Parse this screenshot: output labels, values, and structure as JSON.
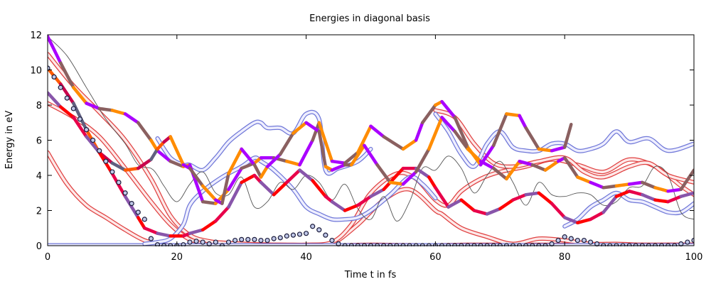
{
  "chart_data": {
    "type": "line",
    "title": "Energies in diagonal basis",
    "xlabel": "Time t in fs",
    "ylabel": "Energy in eV",
    "xlim": [
      0,
      100
    ],
    "ylim": [
      0,
      12
    ],
    "xticks": [
      0,
      20,
      40,
      60,
      80,
      100
    ],
    "yticks": [
      0,
      2,
      4,
      6,
      8,
      10,
      12
    ],
    "grid": false,
    "legend": "none",
    "colors": {
      "ribbon_red_edge": "#e04040",
      "ribbon_red_fill": "#fde8e8",
      "ribbon_blue_edge": "#7078d8",
      "ribbon_blue_fill": "#eeeeff",
      "thin_line": "#555555",
      "circle_fill": "#c0c8e8",
      "circle_edge": "#1a1a3a",
      "hot": [
        "#ff0000",
        "#ff5a00",
        "#ff8c00",
        "#e8004a",
        "#c8004c",
        "#aa00ff",
        "#8855aa",
        "#606080",
        "#8a6060"
      ]
    },
    "series": [
      {
        "style": "ribbon-red",
        "x": [
          0,
          3,
          6,
          9,
          12,
          15,
          18,
          21,
          24,
          27,
          30,
          33,
          36,
          40,
          45,
          50,
          55,
          60,
          65,
          70,
          75,
          80,
          85,
          90,
          95,
          100
        ],
        "y": [
          5.3,
          3.5,
          2.3,
          1.6,
          0.9,
          0.3,
          0.05,
          0,
          0,
          0,
          0,
          0,
          0,
          0,
          0.02,
          0.05,
          0.03,
          0.02,
          0.05,
          0.05,
          0.05,
          0.05,
          0.05,
          0.05,
          0.05,
          0.05
        ]
      },
      {
        "style": "ribbon-red",
        "x": [
          0,
          4,
          8,
          12,
          16,
          19,
          22,
          25,
          28,
          32,
          35,
          38,
          41,
          44,
          48,
          52,
          56,
          60,
          61,
          64,
          68,
          72,
          76,
          80,
          84,
          88,
          92,
          96,
          100
        ],
        "y": [
          8.1,
          7.3,
          6.2,
          4.4,
          2.5,
          1.2,
          0.35,
          0.2,
          0.1,
          0.05,
          0.05,
          0.05,
          0.05,
          0.1,
          1.2,
          2.6,
          3.2,
          2.0,
          1.8,
          1.0,
          0.5,
          0.1,
          0.4,
          0.3,
          0.1,
          0.1,
          0.05,
          0.05,
          0.05
        ]
      },
      {
        "style": "ribbon-red",
        "x": [
          0,
          4,
          8,
          12,
          16,
          19,
          22,
          25,
          28,
          32,
          36,
          40,
          44,
          47,
          50,
          54,
          57,
          60,
          62,
          64,
          67,
          70,
          74,
          78,
          82,
          86,
          90,
          94,
          98,
          100
        ],
        "y": [
          10.9,
          9.1,
          7.6,
          6.0,
          3.8,
          1.7,
          0.6,
          0.25,
          0.15,
          0.08,
          0.05,
          0.05,
          0.2,
          1.2,
          3.0,
          4.1,
          3.8,
          2.6,
          2.3,
          3.1,
          3.8,
          4.2,
          4.5,
          4.9,
          4.6,
          4.2,
          4.9,
          4.5,
          3.4,
          2.9
        ]
      },
      {
        "style": "ribbon-red",
        "x": [
          60,
          63,
          66,
          69,
          72,
          76,
          80,
          83,
          86,
          90,
          93,
          96,
          100
        ],
        "y": [
          7.7,
          7.3,
          5.8,
          4.7,
          4.5,
          4.8,
          5.0,
          4.2,
          3.9,
          4.5,
          4.7,
          4.0,
          3.6
        ]
      },
      {
        "style": "ribbon-blue",
        "x": [
          0,
          5,
          10,
          15,
          18,
          20,
          23,
          26,
          29,
          32,
          34,
          37,
          40,
          42,
          44,
          46,
          48,
          50,
          52,
          55,
          58,
          60,
          62,
          65,
          70,
          75,
          80,
          85,
          90,
          95,
          100
        ],
        "y": [
          0.02,
          0.02,
          0.02,
          0.02,
          0.02,
          0.02,
          0.02,
          0.02,
          0.02,
          0.02,
          0.02,
          0.02,
          0.02,
          0.02,
          0.02,
          0.02,
          0.02,
          0.02,
          0.02,
          0.02,
          0.02,
          0.02,
          0.02,
          0.02,
          0.02,
          0.02,
          0.02,
          0.02,
          0.02,
          0.02,
          0.02
        ]
      },
      {
        "style": "ribbon-blue",
        "x": [
          15,
          17,
          19,
          21,
          22,
          24,
          27,
          30,
          32,
          33,
          35,
          38,
          40,
          42,
          44,
          46,
          48,
          50,
          53,
          56,
          58,
          60
        ],
        "y": [
          0.1,
          0.2,
          0.4,
          1.2,
          2.3,
          3.1,
          3.9,
          4.5,
          5.0,
          4.8,
          4.3,
          3.2,
          2.2,
          1.8,
          1.5,
          1.5,
          1.6,
          2.0,
          2.9,
          3.9,
          3.5,
          2.7
        ]
      },
      {
        "style": "ribbon-blue",
        "x": [
          17,
          19,
          21,
          22,
          24,
          26,
          28,
          30,
          32,
          33,
          34,
          36,
          38,
          40,
          42,
          43,
          45,
          48,
          50
        ],
        "y": [
          6.1,
          5.0,
          4.6,
          4.6,
          4.3,
          5.0,
          5.9,
          6.5,
          7.0,
          7.0,
          6.7,
          6.7,
          6.4,
          7.5,
          7.2,
          4.3,
          4.4,
          4.8,
          5.5
        ]
      },
      {
        "style": "ribbon-blue",
        "x": [
          60,
          62,
          64,
          66,
          68,
          70,
          72,
          74,
          76,
          78,
          80,
          82,
          84,
          86,
          88,
          90,
          93,
          96,
          100
        ],
        "y": [
          7.5,
          6.5,
          5.2,
          4.5,
          5.8,
          6.5,
          5.6,
          5.4,
          5.4,
          5.8,
          5.8,
          5.4,
          5.5,
          5.8,
          6.5,
          5.9,
          6.1,
          5.4,
          5.8
        ]
      },
      {
        "style": "ribbon-blue",
        "x": [
          80,
          82,
          84,
          86,
          88,
          90,
          92,
          94,
          96,
          98,
          100
        ],
        "y": [
          1.1,
          1.5,
          2.2,
          2.6,
          3.0,
          2.6,
          2.5,
          2.2,
          1.9,
          1.9,
          2.4
        ]
      },
      {
        "style": "thin",
        "x": [
          0,
          3,
          6,
          9,
          12,
          14,
          16,
          17,
          18,
          20,
          22,
          24,
          26,
          28,
          30,
          32,
          34,
          36,
          38,
          40,
          42,
          44,
          46,
          48,
          50,
          52,
          54,
          56,
          58,
          60,
          62,
          64,
          66,
          68,
          70,
          72,
          74,
          76,
          78,
          80,
          82,
          84,
          86,
          88,
          90,
          92,
          94,
          96,
          98,
          100
        ],
        "y": [
          11.9,
          10.8,
          9.0,
          7.2,
          5.8,
          4.6,
          4.4,
          4.0,
          3.4,
          2.5,
          3.5,
          4.2,
          3.0,
          2.9,
          3.9,
          2.2,
          2.5,
          3.6,
          3.2,
          4.0,
          3.6,
          2.6,
          3.5,
          2.1,
          1.5,
          2.8,
          1.4,
          2.5,
          4.4,
          4.3,
          5.1,
          4.4,
          3.0,
          4.0,
          4.8,
          3.6,
          2.3,
          3.6,
          2.9,
          2.8,
          3.0,
          2.9,
          2.3,
          2.5,
          3.3,
          3.4,
          4.5,
          4.0,
          1.9,
          1.5
        ]
      },
      {
        "style": "hot",
        "x": [
          0,
          2,
          4,
          6,
          8,
          10,
          12,
          14,
          16,
          17,
          19,
          21,
          22,
          24,
          26,
          28,
          30,
          32,
          33,
          35,
          37,
          39,
          41,
          42,
          44,
          46,
          48,
          50,
          52,
          55,
          57,
          58,
          60,
          61,
          63,
          65,
          67,
          69,
          71,
          73,
          74,
          76,
          78,
          80,
          81
        ],
        "y": [
          11.9,
          10.4,
          9.0,
          8.1,
          7.8,
          7.7,
          7.5,
          7.0,
          6.0,
          5.4,
          4.8,
          4.5,
          4.6,
          2.5,
          2.4,
          3.2,
          4.4,
          4.7,
          5.0,
          5.0,
          4.8,
          4.6,
          6.0,
          7.0,
          4.8,
          4.7,
          5.3,
          6.8,
          6.2,
          5.5,
          6.0,
          7.0,
          8.0,
          8.2,
          7.3,
          5.6,
          4.6,
          5.7,
          7.5,
          7.4,
          6.7,
          5.5,
          5.4,
          5.6,
          6.9
        ]
      },
      {
        "style": "hot",
        "x": [
          0,
          2,
          4,
          6,
          8,
          10,
          12,
          14,
          16,
          17,
          18,
          19
        ],
        "y": [
          10.1,
          9.2,
          8.1,
          6.6,
          5.3,
          4.7,
          4.3,
          4.4,
          4.9,
          5.5,
          5.9,
          6.2
        ]
      },
      {
        "style": "hot",
        "x": [
          0,
          2,
          4,
          6,
          8,
          10,
          12,
          14,
          15,
          17,
          19,
          21,
          22,
          24,
          26,
          28,
          30,
          32,
          33,
          35,
          37,
          39,
          41,
          43,
          44,
          46,
          48,
          50,
          52,
          55,
          57,
          59,
          60,
          62,
          64,
          66,
          68,
          70,
          72,
          74,
          76,
          78,
          80,
          82,
          84,
          86,
          88,
          90,
          92,
          94,
          96,
          98,
          100
        ],
        "y": [
          8.7,
          7.9,
          7.3,
          6.2,
          5.3,
          4.1,
          2.8,
          1.6,
          1.0,
          0.7,
          0.55,
          0.55,
          0.7,
          0.9,
          1.4,
          2.2,
          3.6,
          4.0,
          3.6,
          2.9,
          3.6,
          4.3,
          3.7,
          2.8,
          2.5,
          2.0,
          2.3,
          2.8,
          3.2,
          4.4,
          4.4,
          3.9,
          3.3,
          2.2,
          2.6,
          2.0,
          1.8,
          2.1,
          2.6,
          2.9,
          3.0,
          2.4,
          1.6,
          1.3,
          1.5,
          1.9,
          2.8,
          3.1,
          2.9,
          2.6,
          2.5,
          2.8,
          3.0
        ]
      },
      {
        "style": "hot",
        "x": [
          19,
          21,
          22,
          24,
          26,
          27,
          28,
          30,
          32,
          33,
          34,
          36,
          38,
          40,
          42,
          43,
          44,
          46,
          47,
          49,
          51,
          53,
          55,
          57,
          59,
          61,
          63,
          65,
          67,
          69,
          71,
          73,
          75,
          77,
          79,
          80,
          82,
          84,
          86,
          88,
          90,
          92,
          94,
          96,
          98,
          100
        ],
        "y": [
          6.2,
          4.6,
          4.4,
          3.4,
          2.6,
          2.4,
          4.1,
          5.5,
          4.6,
          3.9,
          4.5,
          5.2,
          6.4,
          7.0,
          6.5,
          4.5,
          4.3,
          4.6,
          4.6,
          5.7,
          4.6,
          3.6,
          3.5,
          4.2,
          5.5,
          7.3,
          6.5,
          5.5,
          4.8,
          4.4,
          3.8,
          4.8,
          4.6,
          4.3,
          4.8,
          5.0,
          3.9,
          3.6,
          3.3,
          3.4,
          3.5,
          3.6,
          3.3,
          3.1,
          3.2,
          4.3
        ]
      },
      {
        "style": "circles",
        "x": [
          0,
          1,
          2,
          3,
          4,
          5,
          6,
          7,
          8,
          9,
          10,
          11,
          12,
          13,
          14,
          15,
          16,
          17,
          18,
          19,
          20,
          21,
          22,
          23,
          24,
          25,
          26,
          27,
          28,
          29,
          30,
          31,
          32,
          33,
          34,
          35,
          36,
          37,
          38,
          39,
          40,
          41,
          42,
          43,
          44,
          45,
          46,
          47,
          48,
          49,
          50,
          51,
          52,
          53,
          54,
          55,
          56,
          57,
          58,
          59,
          60,
          61,
          62,
          63,
          64,
          65,
          66,
          67,
          68,
          69,
          70,
          71,
          72,
          73,
          74,
          75,
          76,
          77,
          78,
          79,
          80,
          81,
          82,
          83,
          84,
          85,
          86,
          87,
          88,
          89,
          90,
          91,
          92,
          93,
          94,
          95,
          96,
          97,
          98,
          99,
          100
        ],
        "y": [
          10.1,
          9.6,
          9.0,
          8.4,
          7.8,
          7.2,
          6.6,
          6.0,
          5.4,
          4.8,
          4.2,
          3.6,
          3.0,
          2.4,
          1.9,
          1.5,
          0.4,
          0.05,
          0.0,
          0.0,
          0.0,
          0.05,
          0.2,
          0.25,
          0.2,
          0.1,
          0.2,
          0.0,
          0.2,
          0.3,
          0.35,
          0.35,
          0.35,
          0.3,
          0.3,
          0.4,
          0.45,
          0.55,
          0.6,
          0.65,
          0.7,
          1.1,
          0.9,
          0.6,
          0.3,
          0.1,
          0.0,
          0.0,
          0.0,
          0.0,
          0.0,
          0.0,
          0.0,
          0.0,
          0.0,
          0.0,
          0.0,
          0.0,
          0.0,
          0.0,
          0.0,
          0.0,
          0.0,
          0.0,
          0.0,
          0.0,
          0.0,
          0.0,
          0.0,
          0.0,
          0.0,
          0.0,
          0.0,
          0.0,
          0.0,
          0.0,
          0.0,
          0.0,
          0.1,
          0.3,
          0.5,
          0.4,
          0.3,
          0.3,
          0.2,
          0.1,
          0.0,
          0.0,
          0.0,
          0.0,
          0.0,
          0.0,
          0.0,
          0.0,
          0.0,
          0.0,
          0.0,
          0.0,
          0.1,
          0.2,
          0.3
        ]
      }
    ]
  }
}
